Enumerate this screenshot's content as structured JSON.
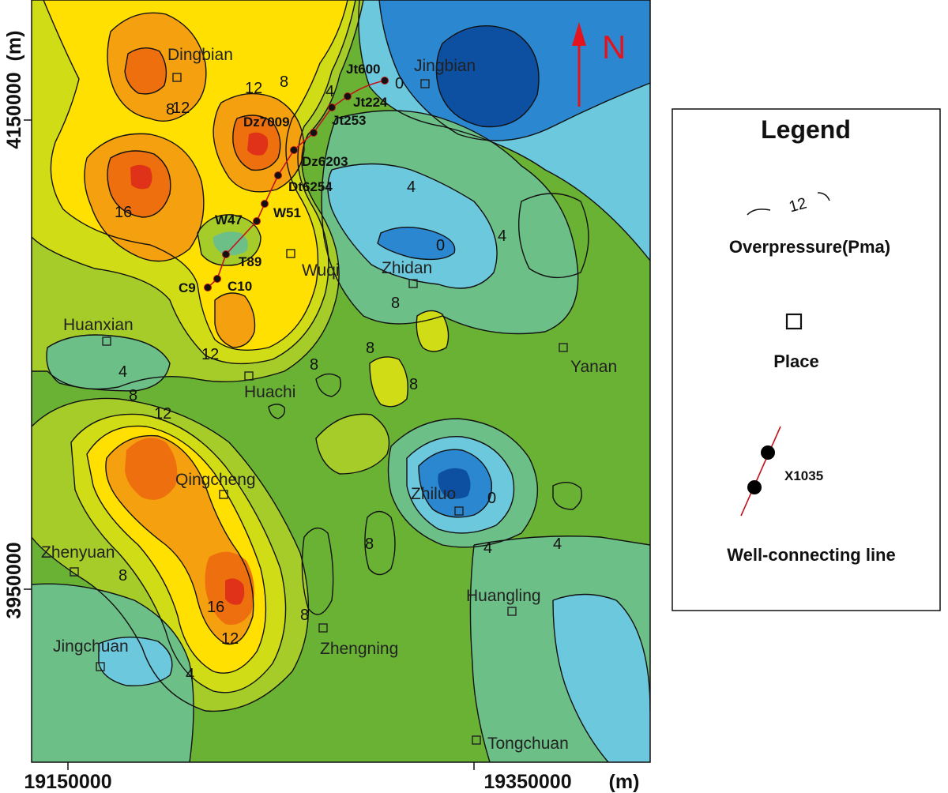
{
  "map": {
    "north_label": "N",
    "x_ticks": [
      "19150000",
      "19350000"
    ],
    "x_unit": "(m)",
    "y_ticks": [
      "4150000",
      "3950000"
    ],
    "y_unit": "(m)",
    "places": [
      "Dingbian",
      "Jingbian",
      "Wuqi",
      "Zhidan",
      "Huanxian",
      "Yanan",
      "Huachi",
      "Qingcheng",
      "Zhiluo",
      "Zhenyuan",
      "Huangling",
      "Zhengning",
      "Jingchuan",
      "Tongchuan"
    ],
    "wells": [
      "Jt600",
      "Jt224",
      "Jt253",
      "Dz7009",
      "Dz6203",
      "Dt6254",
      "W51",
      "W47",
      "T89",
      "C10",
      "C9"
    ],
    "contour_labels": [
      "0",
      "4",
      "8",
      "12",
      "16",
      "8",
      "12",
      "4",
      "0",
      "4",
      "8",
      "8",
      "12",
      "8",
      "4",
      "8",
      "8",
      "12",
      "0",
      "4",
      "8",
      "8",
      "4",
      "16",
      "12",
      "4",
      "8",
      "4",
      "12",
      "16"
    ],
    "colors": {
      "level_0": "#0d4fa0",
      "level_2": "#2b87cf",
      "level_4": "#6cc8dc",
      "level_6": "#6cbf86",
      "level_8": "#6ab234",
      "level_10": "#a6cc2a",
      "level_12": "#cfdc16",
      "level_14": "#ffe000",
      "level_16": "#f5a00f",
      "level_18": "#ee6f0d",
      "level_20": "#e03218",
      "well_line": "#c0141c",
      "north_arrow": "#e3141e"
    }
  },
  "legend": {
    "title": "Legend",
    "contour_sample": "12",
    "contour_text": "Overpressure(Pma)",
    "place_text": "Place",
    "well_sample": "X1035",
    "well_text": "Well-connecting line"
  }
}
